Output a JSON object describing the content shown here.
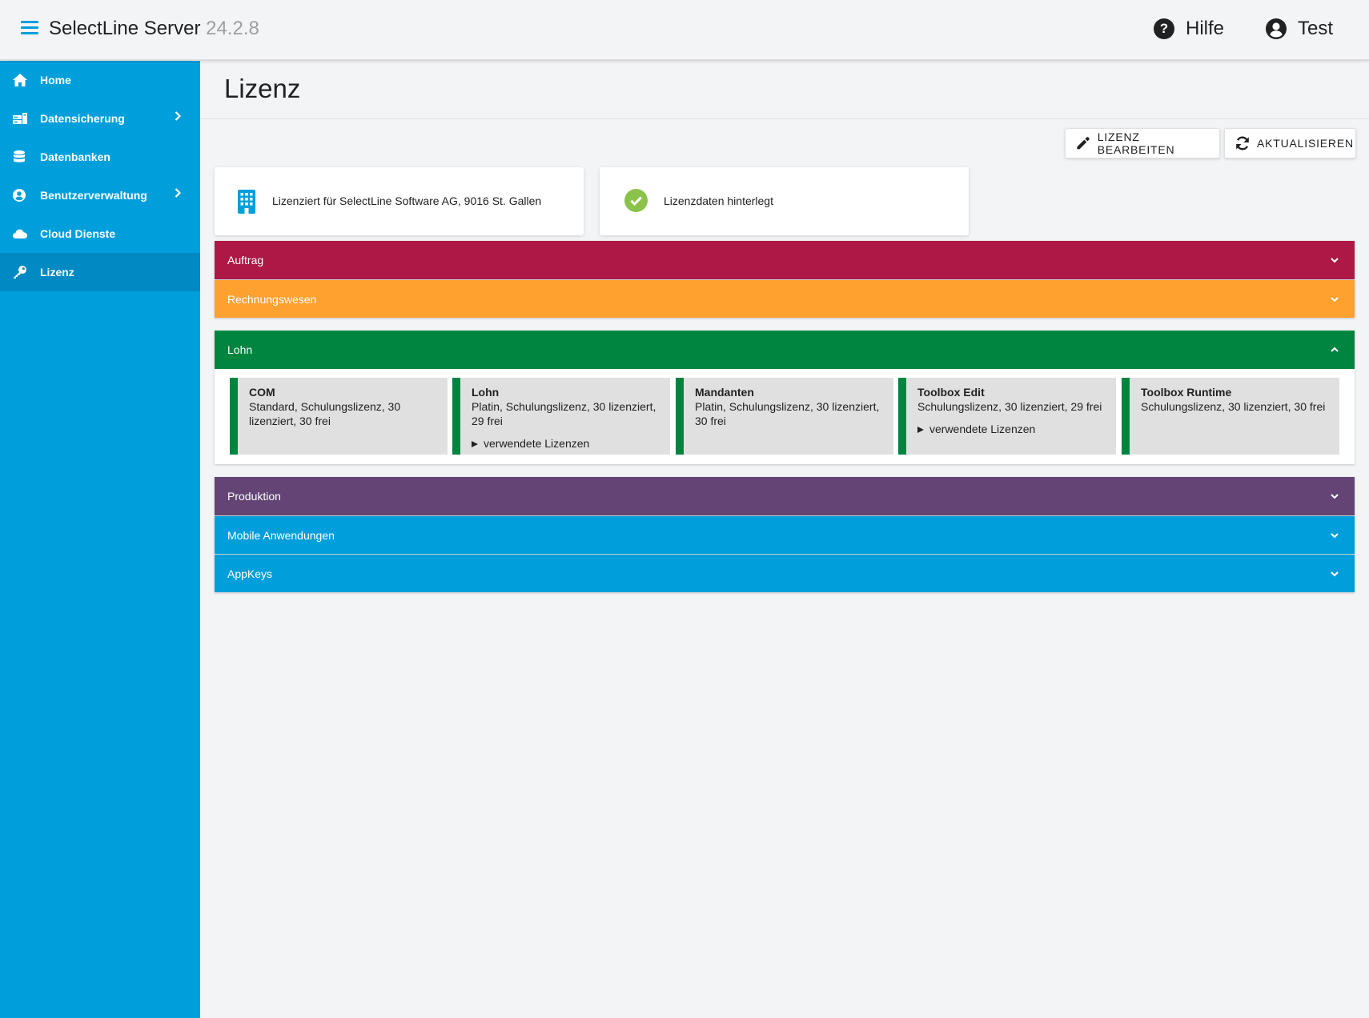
{
  "app": {
    "name": "SelectLine Server",
    "version": "24.2.8"
  },
  "header": {
    "help_label": "Hilfe",
    "user_label": "Test"
  },
  "sidebar": {
    "items": [
      {
        "label": "Home"
      },
      {
        "label": "Datensicherung"
      },
      {
        "label": "Datenbanken"
      },
      {
        "label": "Benutzerverwaltung"
      },
      {
        "label": "Cloud Dienste"
      },
      {
        "label": "Lizenz"
      }
    ]
  },
  "page": {
    "title": "Lizenz"
  },
  "toolbar": {
    "edit_label": "LIZENZ BEARBEITEN",
    "refresh_label": "AKTUALISIEREN"
  },
  "info": {
    "licensed_for": "Lizenziert für SelectLine Software AG, 9016 St. Gallen",
    "status": "Lizenzdaten hinterlegt"
  },
  "panels": [
    {
      "label": "Auftrag",
      "color": "#ad1847",
      "expanded": false
    },
    {
      "label": "Rechnungswesen",
      "color": "#ffa12f",
      "expanded": false
    },
    {
      "label": "Lohn",
      "color": "#008540",
      "expanded": true,
      "modules": [
        {
          "name": "COM",
          "desc": "Standard, Schulungslizenz, 30 lizenziert, 30 frei"
        },
        {
          "name": "Lohn",
          "desc": "Platin, Schulungslizenz, 30 lizenziert, 29 frei",
          "more": "verwendete Lizenzen"
        },
        {
          "name": "Mandanten",
          "desc": "Platin, Schulungslizenz, 30 lizenziert, 30 frei"
        },
        {
          "name": "Toolbox Edit",
          "desc": "Schulungslizenz, 30 lizenziert, 29 frei",
          "more": "verwendete Lizenzen"
        },
        {
          "name": "Toolbox Runtime",
          "desc": "Schulungslizenz, 30 lizenziert, 30 frei"
        }
      ]
    },
    {
      "label": "Produktion",
      "color": "#634474",
      "expanded": false
    },
    {
      "label": "Mobile Anwendungen",
      "color": "#009fdb",
      "expanded": false
    },
    {
      "label": "AppKeys",
      "color": "#009fdb",
      "expanded": false
    }
  ],
  "colors": {
    "accent": "#009fdb",
    "sidebar_active": "#0089c2",
    "success": "#8bc34a"
  },
  "icons": {
    "menu": "hamburger-icon",
    "help": "question-circle-icon",
    "user": "account-circle-icon",
    "home": "home-icon",
    "backup": "backup-icon",
    "database": "database-icon",
    "users": "user-circle-icon",
    "cloud": "cloud-icon",
    "license": "key-icon",
    "edit": "pencil-icon",
    "refresh": "refresh-icon",
    "company": "building-icon",
    "ok": "check-circle-icon"
  }
}
